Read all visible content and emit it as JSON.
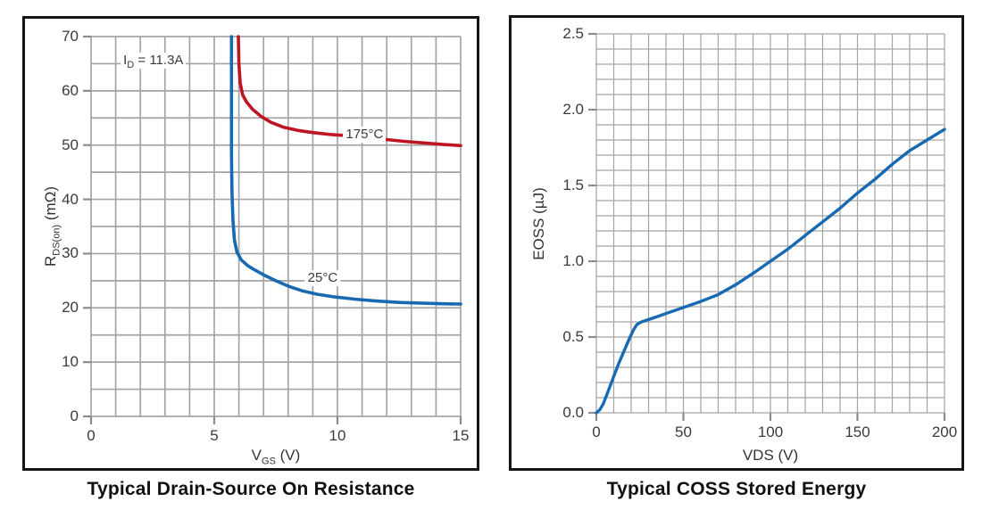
{
  "page": {
    "background": "#ffffff",
    "grid_color": "#a4a4a4",
    "tick_color": "#8c8c8c"
  },
  "chart_data": [
    {
      "type": "line",
      "title": "Typical Drain-Source On Resistance",
      "xlabel_segments": [
        {
          "t": "V"
        },
        {
          "t": "GS",
          "sub": true
        },
        {
          "t": " (V)"
        }
      ],
      "ylabel_segments": [
        {
          "t": "R"
        },
        {
          "t": "DS(on)",
          "sub": true
        },
        {
          "t": " (mΩ)"
        }
      ],
      "xlim": [
        0,
        15
      ],
      "ylim": [
        0,
        70
      ],
      "x_grid_step": 1,
      "y_grid_step": 5,
      "xticks": [
        0,
        5,
        10,
        15
      ],
      "xtick_labels": [
        "0",
        "5",
        "10",
        "15"
      ],
      "yticks": [
        0,
        10,
        20,
        30,
        40,
        50,
        60,
        70
      ],
      "ytick_labels": [
        "0",
        "10",
        "20",
        "30",
        "40",
        "50",
        "60",
        "70"
      ],
      "grid": true,
      "legend": "inline-labels",
      "annotation": {
        "segments": [
          {
            "t": "I"
          },
          {
            "t": "D",
            "sub": true
          },
          {
            "t": " = 11.3A"
          }
        ],
        "x": 1.2,
        "y": 65.6
      },
      "series": [
        {
          "name": "25°C",
          "color": "#1769b2",
          "label": "25°C",
          "label_x": 9.4,
          "label_y": 25.4,
          "points": [
            [
              5.7,
              70
            ],
            [
              5.7,
              48
            ],
            [
              5.72,
              41
            ],
            [
              5.76,
              36
            ],
            [
              5.82,
              32.5
            ],
            [
              5.92,
              30.3
            ],
            [
              6.1,
              28.8
            ],
            [
              6.35,
              27.8
            ],
            [
              6.6,
              27.1
            ],
            [
              7.0,
              26.1
            ],
            [
              7.5,
              25.0
            ],
            [
              8.0,
              24.0
            ],
            [
              8.6,
              23.1
            ],
            [
              9.2,
              22.5
            ],
            [
              9.9,
              22.0
            ],
            [
              10.7,
              21.6
            ],
            [
              11.5,
              21.3
            ],
            [
              12.5,
              21.0
            ],
            [
              13.5,
              20.85
            ],
            [
              14.3,
              20.75
            ],
            [
              15,
              20.7
            ]
          ]
        },
        {
          "name": "175°C",
          "color": "#bf1522",
          "label": "175°C",
          "label_x": 11.1,
          "label_y": 51.9,
          "points": [
            [
              5.98,
              70
            ],
            [
              6.0,
              65
            ],
            [
              6.05,
              61.5
            ],
            [
              6.15,
              59.3
            ],
            [
              6.3,
              58.0
            ],
            [
              6.55,
              56.6
            ],
            [
              6.9,
              55.3
            ],
            [
              7.3,
              54.2
            ],
            [
              7.8,
              53.3
            ],
            [
              8.4,
              52.7
            ],
            [
              9.0,
              52.3
            ],
            [
              9.7,
              51.95
            ],
            [
              10.35,
              51.75
            ],
            [
              11.0,
              51.5
            ],
            [
              11.8,
              51.1
            ],
            [
              12.7,
              50.7
            ],
            [
              13.5,
              50.4
            ],
            [
              14.3,
              50.1
            ],
            [
              15,
              49.9
            ]
          ]
        }
      ]
    },
    {
      "type": "line",
      "title": "Typical COSS Stored Energy",
      "xlabel_segments": [
        {
          "t": "VDS (V)"
        }
      ],
      "ylabel_segments": [
        {
          "t": "EOSS (µJ)"
        }
      ],
      "xlim": [
        0,
        200
      ],
      "ylim": [
        0,
        2.5
      ],
      "x_grid_step": 10,
      "y_grid_step": 0.1,
      "xticks": [
        0,
        50,
        100,
        150,
        200
      ],
      "xtick_labels": [
        "0",
        "50",
        "100",
        "150",
        "200"
      ],
      "yticks": [
        0,
        0.5,
        1.0,
        1.5,
        2.0,
        2.5
      ],
      "ytick_labels": [
        "0.0",
        "0.5",
        "1.0",
        "1.5",
        "2.0",
        "2.5"
      ],
      "grid": true,
      "legend": "none",
      "series": [
        {
          "name": "EOSS",
          "color": "#1769b2",
          "points": [
            [
              0,
              0
            ],
            [
              2,
              0.02
            ],
            [
              4,
              0.06
            ],
            [
              7,
              0.15
            ],
            [
              10,
              0.24
            ],
            [
              13,
              0.33
            ],
            [
              16,
              0.41
            ],
            [
              19,
              0.49
            ],
            [
              21.5,
              0.55
            ],
            [
              23.5,
              0.585
            ],
            [
              26,
              0.6
            ],
            [
              30,
              0.615
            ],
            [
              35,
              0.635
            ],
            [
              40,
              0.655
            ],
            [
              50,
              0.695
            ],
            [
              60,
              0.735
            ],
            [
              70,
              0.78
            ],
            [
              80,
              0.845
            ],
            [
              90,
              0.92
            ],
            [
              100,
              1.0
            ],
            [
              110,
              1.08
            ],
            [
              120,
              1.17
            ],
            [
              130,
              1.26
            ],
            [
              140,
              1.35
            ],
            [
              150,
              1.45
            ],
            [
              160,
              1.54
            ],
            [
              170,
              1.64
            ],
            [
              180,
              1.73
            ],
            [
              190,
              1.8
            ],
            [
              200,
              1.87
            ]
          ]
        }
      ]
    }
  ]
}
